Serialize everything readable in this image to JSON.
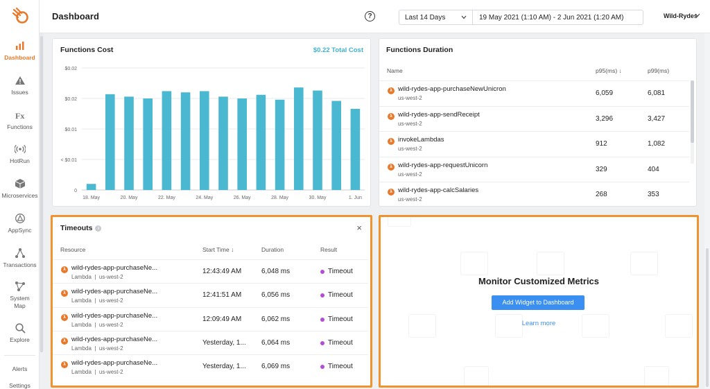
{
  "header": {
    "title": "Dashboard",
    "help_label": "?",
    "range_label": "Last 14 Days",
    "range_dates": "19 May 2021 (1:10 AM) - 2 Jun 2021 (1:20 AM)",
    "org": "Wild-Rydes"
  },
  "sidebar": {
    "items": [
      {
        "label": "Dashboard",
        "icon": "bar-chart-icon",
        "active": true
      },
      {
        "label": "Issues",
        "icon": "warning-icon"
      },
      {
        "label": "Functions",
        "icon": "fx-icon"
      },
      {
        "label": "HotRun",
        "icon": "broadcast-icon"
      },
      {
        "label": "Microservices",
        "icon": "cube-icon"
      },
      {
        "label": "AppSync",
        "icon": "appsync-icon"
      },
      {
        "label": "Transactions",
        "icon": "network-icon"
      },
      {
        "label": "System Map",
        "icon": "system-map-icon"
      },
      {
        "label": "Explore",
        "icon": "search-icon"
      }
    ],
    "alerts": "Alerts",
    "settings": "Settings"
  },
  "cost": {
    "title": "Functions Cost",
    "total": "$0.22 Total Cost"
  },
  "chart_data": {
    "type": "bar",
    "title": "Functions Cost",
    "y_tick_labels": [
      "$0.02",
      "$0.02",
      "$0.01",
      "< $0.01",
      "0"
    ],
    "x_tick_labels": [
      "18. May",
      "20. May",
      "22. May",
      "24. May",
      "26. May",
      "28. May",
      "30. May",
      "1. Jun"
    ],
    "categories": [
      "18. May",
      "19. May",
      "20. May",
      "21. May",
      "22. May",
      "23. May",
      "24. May",
      "25. May",
      "26. May",
      "27. May",
      "28. May",
      "29. May",
      "30. May",
      "31. May",
      "1. Jun"
    ],
    "values": [
      0.001,
      0.0157,
      0.0153,
      0.015,
      0.0162,
      0.016,
      0.0162,
      0.0153,
      0.015,
      0.0156,
      0.0148,
      0.0168,
      0.0163,
      0.0146,
      0.0133
    ],
    "ylim": [
      0,
      0.02
    ],
    "color": "#4bb8d1",
    "grid": true
  },
  "duration": {
    "title": "Functions Duration",
    "col_name": "Name",
    "col_p95": "p95(ms) ↓",
    "col_p99": "p99(ms)",
    "rows": [
      {
        "name": "wild-rydes-app-purchaseNewUnicron",
        "region": "us-west-2",
        "p95": "6,059",
        "p99": "6,081"
      },
      {
        "name": "wild-rydes-app-sendReceipt",
        "region": "us-west-2",
        "p95": "3,296",
        "p99": "3,427"
      },
      {
        "name": "invokeLambdas",
        "region": "us-west-2",
        "p95": "912",
        "p99": "1,082"
      },
      {
        "name": "wild-rydes-app-requestUnicorn",
        "region": "us-west-2",
        "p95": "329",
        "p99": "404"
      },
      {
        "name": "wild-rydes-app-calcSalaries",
        "region": "us-west-2",
        "p95": "268",
        "p99": "353"
      }
    ]
  },
  "timeouts": {
    "title": "Timeouts",
    "info": "i",
    "close": "×",
    "col_resource": "Resource",
    "col_start": "Start Time ↓",
    "col_duration": "Duration",
    "col_result": "Result",
    "rows": [
      {
        "name": "wild-rydes-app-purchaseNe...",
        "type": "Lambda",
        "region": "us-west-2",
        "start": "12:43:49 AM",
        "duration": "6,048 ms",
        "result": "Timeout"
      },
      {
        "name": "wild-rydes-app-purchaseNe...",
        "type": "Lambda",
        "region": "us-west-2",
        "start": "12:41:51 AM",
        "duration": "6,056 ms",
        "result": "Timeout"
      },
      {
        "name": "wild-rydes-app-purchaseNe...",
        "type": "Lambda",
        "region": "us-west-2",
        "start": "12:09:49 AM",
        "duration": "6,062 ms",
        "result": "Timeout"
      },
      {
        "name": "wild-rydes-app-purchaseNe...",
        "type": "Lambda",
        "region": "us-west-2",
        "start": "Yesterday, 1...",
        "duration": "6,064 ms",
        "result": "Timeout"
      },
      {
        "name": "wild-rydes-app-purchaseNe...",
        "type": "Lambda",
        "region": "us-west-2",
        "start": "Yesterday, 1...",
        "duration": "6,069 ms",
        "result": "Timeout"
      }
    ]
  },
  "custom": {
    "title": "Monitor Customized Metrics",
    "button": "Add Widget to Dashboard",
    "link": "Learn more"
  }
}
